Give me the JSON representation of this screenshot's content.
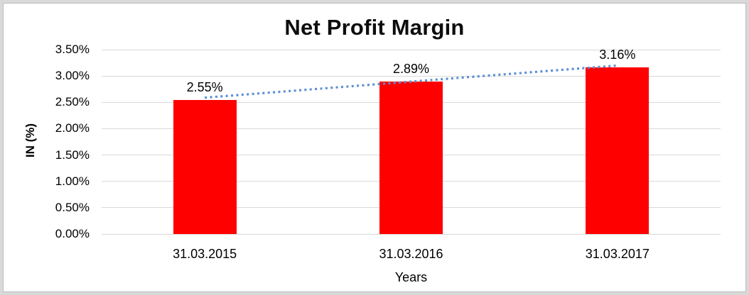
{
  "chart_data": {
    "type": "bar",
    "title": "Net Profit Margin",
    "xlabel": "Years",
    "ylabel": "IN (%)",
    "categories": [
      "31.03.2015",
      "31.03.2016",
      "31.03.2017"
    ],
    "values": [
      2.55,
      2.89,
      3.16
    ],
    "value_labels": [
      "2.55%",
      "2.89%",
      "3.16%"
    ],
    "ytick_labels": [
      "0.00%",
      "0.50%",
      "1.00%",
      "1.50%",
      "2.00%",
      "2.50%",
      "3.00%",
      "3.50%"
    ],
    "ylim": [
      0,
      3.5
    ],
    "ytick_step": 0.5,
    "grid": "horizontal",
    "legend": "none",
    "bar_color": "#ff0000",
    "gridline_color": "#d9d9d9",
    "trendline": {
      "type": "linear",
      "style": "dotted",
      "color": "#5b8fd4"
    }
  }
}
